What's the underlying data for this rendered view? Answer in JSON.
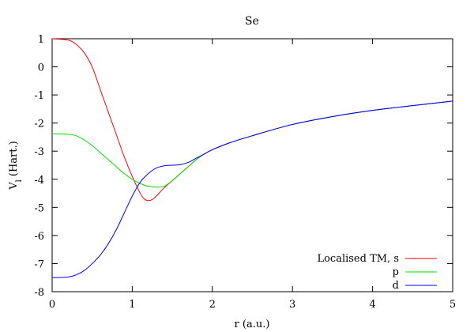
{
  "chart_data": {
    "type": "line",
    "title": "Se",
    "xlabel": "r (a.u.)",
    "ylabel": {
      "main": "V",
      "subscript": "l",
      "unit": "(Hart.)"
    },
    "xlim": [
      0,
      5
    ],
    "ylim": [
      -8,
      1
    ],
    "xticks": [
      0,
      1,
      2,
      3,
      4,
      5
    ],
    "yticks": [
      1,
      0,
      -1,
      -2,
      -3,
      -4,
      -5,
      -6,
      -7,
      -8
    ],
    "grid": false,
    "legend_position": "bottom-right",
    "series": [
      {
        "name": "Localised TM, s",
        "color": "#ff0000",
        "x": [
          0,
          0.2,
          0.3,
          0.4,
          0.5,
          0.6,
          0.7,
          0.8,
          0.9,
          1.0,
          1.1,
          1.15,
          1.2,
          1.25,
          1.3,
          1.4,
          1.5,
          1.6,
          1.7,
          1.8,
          1.9,
          2.0,
          2.2,
          2.5,
          3.0,
          3.5,
          4.0,
          4.5,
          5.0
        ],
        "y": [
          1.0,
          0.95,
          0.8,
          0.5,
          0.0,
          -0.8,
          -1.6,
          -2.4,
          -3.2,
          -3.9,
          -4.5,
          -4.7,
          -4.76,
          -4.72,
          -4.6,
          -4.3,
          -4.05,
          -3.8,
          -3.55,
          -3.3,
          -3.1,
          -2.95,
          -2.72,
          -2.45,
          -2.05,
          -1.77,
          -1.55,
          -1.38,
          -1.22
        ]
      },
      {
        "name": "p",
        "color": "#00dd00",
        "x": [
          0,
          0.2,
          0.3,
          0.4,
          0.5,
          0.6,
          0.7,
          0.8,
          0.9,
          1.0,
          1.1,
          1.2,
          1.3,
          1.4,
          1.5,
          1.6,
          1.7,
          1.8,
          1.9,
          2.0,
          2.2,
          2.5,
          3.0,
          3.5,
          4.0,
          4.5,
          5.0
        ],
        "y": [
          -2.38,
          -2.4,
          -2.45,
          -2.6,
          -2.8,
          -3.05,
          -3.3,
          -3.55,
          -3.8,
          -4.0,
          -4.15,
          -4.25,
          -4.28,
          -4.25,
          -4.05,
          -3.8,
          -3.55,
          -3.3,
          -3.1,
          -2.95,
          -2.72,
          -2.45,
          -2.05,
          -1.77,
          -1.55,
          -1.38,
          -1.22
        ]
      },
      {
        "name": "d",
        "color": "#0000ff",
        "x": [
          0,
          0.2,
          0.3,
          0.4,
          0.5,
          0.6,
          0.7,
          0.8,
          0.9,
          1.0,
          1.1,
          1.2,
          1.3,
          1.4,
          1.5,
          1.6,
          1.7,
          1.8,
          1.9,
          2.0,
          2.2,
          2.5,
          3.0,
          3.5,
          4.0,
          4.5,
          5.0
        ],
        "y": [
          -7.5,
          -7.48,
          -7.4,
          -7.25,
          -7.0,
          -6.7,
          -6.3,
          -5.8,
          -5.2,
          -4.6,
          -4.1,
          -3.8,
          -3.6,
          -3.52,
          -3.5,
          -3.48,
          -3.4,
          -3.25,
          -3.1,
          -2.95,
          -2.72,
          -2.45,
          -2.05,
          -1.77,
          -1.55,
          -1.38,
          -1.22
        ]
      }
    ]
  }
}
